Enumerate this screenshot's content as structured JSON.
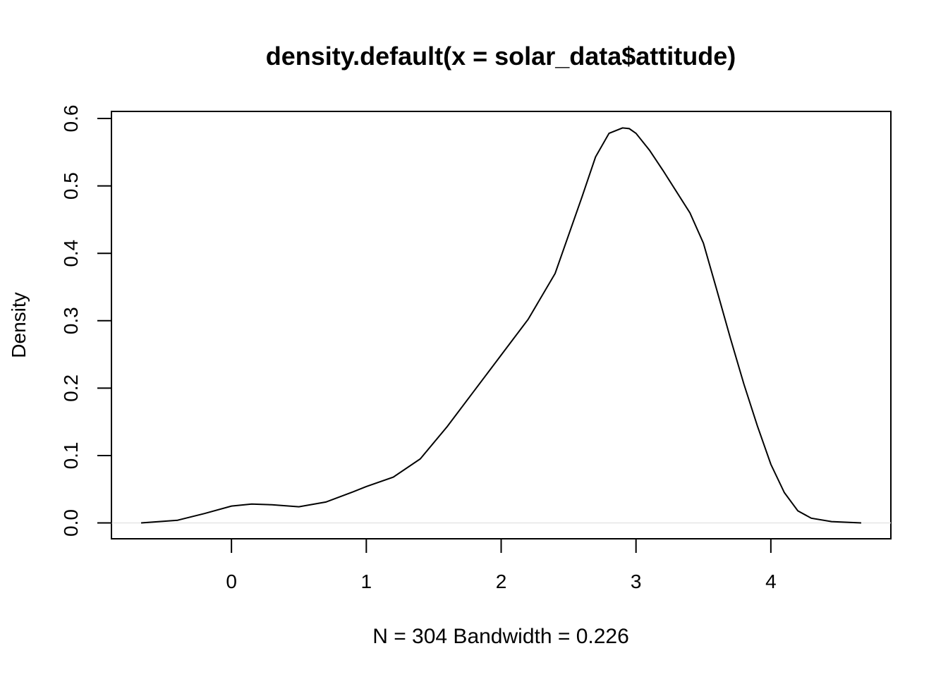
{
  "chart_data": {
    "type": "line",
    "title": "density.default(x = solar_data$attitude)",
    "xlabel": "N = 304   Bandwidth = 0.226",
    "ylabel": "Density",
    "xlim": [
      -0.89,
      4.89
    ],
    "ylim": [
      -0.0235,
      0.6105
    ],
    "x_ticks": [
      0,
      1,
      2,
      3,
      4
    ],
    "y_ticks": [
      0.0,
      0.1,
      0.2,
      0.3,
      0.4,
      0.5,
      0.6
    ],
    "x_tick_labels": [
      "0",
      "1",
      "2",
      "3",
      "4"
    ],
    "y_tick_labels": [
      "0.0",
      "0.1",
      "0.2",
      "0.3",
      "0.4",
      "0.5",
      "0.6"
    ],
    "grid": false,
    "baseline_y": 0,
    "series": [
      {
        "x": [
          -0.67,
          -0.4,
          -0.2,
          0.0,
          0.15,
          0.3,
          0.5,
          0.7,
          0.9,
          1.0,
          1.2,
          1.4,
          1.6,
          1.8,
          2.0,
          2.2,
          2.4,
          2.6,
          2.7,
          2.8,
          2.9,
          2.95,
          3.0,
          3.1,
          3.2,
          3.4,
          3.5,
          3.6,
          3.7,
          3.8,
          3.9,
          4.0,
          4.1,
          4.2,
          4.3,
          4.45,
          4.67
        ],
        "y": [
          0.0,
          0.004,
          0.014,
          0.025,
          0.028,
          0.027,
          0.024,
          0.031,
          0.046,
          0.054,
          0.068,
          0.095,
          0.143,
          0.196,
          0.249,
          0.302,
          0.37,
          0.484,
          0.543,
          0.578,
          0.586,
          0.585,
          0.578,
          0.553,
          0.523,
          0.46,
          0.415,
          0.345,
          0.274,
          0.206,
          0.144,
          0.087,
          0.045,
          0.018,
          0.007,
          0.002,
          0.0
        ]
      }
    ]
  }
}
